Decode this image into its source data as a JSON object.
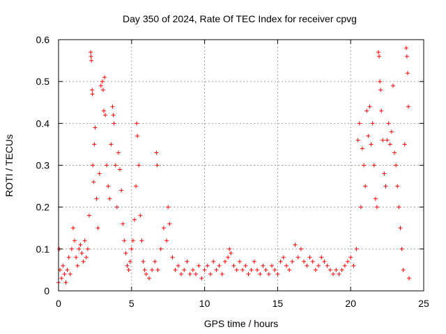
{
  "chart_data": {
    "type": "scatter",
    "title": "Day 350 of 2024, Rate Of TEC Index for receiver cpvg",
    "xlabel": "GPS time / hours",
    "ylabel": "ROTI / TECUs",
    "xlim": [
      0,
      25
    ],
    "ylim": [
      0,
      0.6
    ],
    "xticks": [
      0,
      5,
      10,
      15,
      20,
      25
    ],
    "xtick_labels": [
      "0",
      "5",
      "10",
      "15",
      "20",
      "25"
    ],
    "yticks": [
      0,
      0.1,
      0.2,
      0.3,
      0.4,
      0.5,
      0.6
    ],
    "ytick_labels": [
      "0",
      "0.1",
      "0.2",
      "0.3",
      "0.4",
      "0.5",
      "0.6"
    ],
    "grid": true,
    "marker": "+",
    "color": "#ff0000",
    "series": [
      {
        "name": "ROTI",
        "points": [
          [
            0.0,
            0.02
          ],
          [
            0.05,
            0.1
          ],
          [
            0.1,
            0.05
          ],
          [
            0.2,
            0.03
          ],
          [
            0.3,
            0.06
          ],
          [
            0.4,
            0.04
          ],
          [
            0.5,
            0.02
          ],
          [
            0.6,
            0.05
          ],
          [
            0.7,
            0.08
          ],
          [
            0.8,
            0.04
          ],
          [
            0.9,
            0.1
          ],
          [
            1.0,
            0.15
          ],
          [
            1.1,
            0.12
          ],
          [
            1.2,
            0.08
          ],
          [
            1.3,
            0.06
          ],
          [
            1.4,
            0.1
          ],
          [
            1.5,
            0.11
          ],
          [
            1.6,
            0.09
          ],
          [
            1.7,
            0.07
          ],
          [
            1.8,
            0.12
          ],
          [
            1.9,
            0.08
          ],
          [
            2.0,
            0.1
          ],
          [
            2.1,
            0.18
          ],
          [
            2.2,
            0.57
          ],
          [
            2.22,
            0.56
          ],
          [
            2.25,
            0.55
          ],
          [
            2.3,
            0.48
          ],
          [
            2.32,
            0.47
          ],
          [
            2.35,
            0.3
          ],
          [
            2.4,
            0.26
          ],
          [
            2.45,
            0.35
          ],
          [
            2.5,
            0.39
          ],
          [
            2.6,
            0.22
          ],
          [
            2.7,
            0.15
          ],
          [
            2.8,
            0.28
          ],
          [
            2.9,
            0.49
          ],
          [
            3.0,
            0.5
          ],
          [
            3.05,
            0.48
          ],
          [
            3.1,
            0.43
          ],
          [
            3.15,
            0.51
          ],
          [
            3.2,
            0.42
          ],
          [
            3.3,
            0.3
          ],
          [
            3.4,
            0.25
          ],
          [
            3.5,
            0.22
          ],
          [
            3.6,
            0.35
          ],
          [
            3.7,
            0.44
          ],
          [
            3.75,
            0.42
          ],
          [
            3.8,
            0.4
          ],
          [
            3.9,
            0.3
          ],
          [
            4.0,
            0.2
          ],
          [
            4.1,
            0.33
          ],
          [
            4.2,
            0.29
          ],
          [
            4.3,
            0.24
          ],
          [
            4.4,
            0.16
          ],
          [
            4.5,
            0.12
          ],
          [
            4.6,
            0.09
          ],
          [
            4.7,
            0.06
          ],
          [
            4.8,
            0.05
          ],
          [
            4.9,
            0.07
          ],
          [
            5.0,
            0.1
          ],
          [
            5.1,
            0.12
          ],
          [
            5.2,
            0.17
          ],
          [
            5.3,
            0.25
          ],
          [
            5.35,
            0.4
          ],
          [
            5.4,
            0.37
          ],
          [
            5.5,
            0.3
          ],
          [
            5.6,
            0.18
          ],
          [
            5.7,
            0.12
          ],
          [
            5.8,
            0.07
          ],
          [
            5.9,
            0.05
          ],
          [
            6.0,
            0.04
          ],
          [
            6.2,
            0.03
          ],
          [
            6.4,
            0.05
          ],
          [
            6.6,
            0.07
          ],
          [
            6.7,
            0.33
          ],
          [
            6.75,
            0.3
          ],
          [
            6.8,
            0.05
          ],
          [
            7.0,
            0.1
          ],
          [
            7.2,
            0.15
          ],
          [
            7.4,
            0.12
          ],
          [
            7.5,
            0.2
          ],
          [
            7.6,
            0.16
          ],
          [
            7.8,
            0.08
          ],
          [
            8.0,
            0.05
          ],
          [
            8.2,
            0.06
          ],
          [
            8.4,
            0.04
          ],
          [
            8.6,
            0.05
          ],
          [
            8.8,
            0.07
          ],
          [
            9.0,
            0.04
          ],
          [
            9.2,
            0.05
          ],
          [
            9.4,
            0.04
          ],
          [
            9.6,
            0.06
          ],
          [
            9.8,
            0.03
          ],
          [
            10.0,
            0.05
          ],
          [
            10.2,
            0.06
          ],
          [
            10.4,
            0.04
          ],
          [
            10.6,
            0.07
          ],
          [
            10.8,
            0.05
          ],
          [
            11.0,
            0.06
          ],
          [
            11.2,
            0.04
          ],
          [
            11.4,
            0.07
          ],
          [
            11.6,
            0.08
          ],
          [
            11.7,
            0.1
          ],
          [
            11.8,
            0.09
          ],
          [
            12.0,
            0.06
          ],
          [
            12.2,
            0.05
          ],
          [
            12.4,
            0.07
          ],
          [
            12.6,
            0.05
          ],
          [
            12.8,
            0.06
          ],
          [
            13.0,
            0.04
          ],
          [
            13.2,
            0.05
          ],
          [
            13.4,
            0.07
          ],
          [
            13.6,
            0.05
          ],
          [
            13.8,
            0.04
          ],
          [
            14.0,
            0.06
          ],
          [
            14.2,
            0.05
          ],
          [
            14.4,
            0.04
          ],
          [
            14.6,
            0.06
          ],
          [
            14.8,
            0.05
          ],
          [
            15.0,
            0.04
          ],
          [
            15.2,
            0.07
          ],
          [
            15.4,
            0.08
          ],
          [
            15.6,
            0.06
          ],
          [
            15.8,
            0.05
          ],
          [
            16.0,
            0.07
          ],
          [
            16.2,
            0.11
          ],
          [
            16.4,
            0.08
          ],
          [
            16.6,
            0.1
          ],
          [
            16.8,
            0.07
          ],
          [
            17.0,
            0.06
          ],
          [
            17.2,
            0.08
          ],
          [
            17.4,
            0.07
          ],
          [
            17.6,
            0.05
          ],
          [
            17.8,
            0.06
          ],
          [
            18.0,
            0.08
          ],
          [
            18.2,
            0.07
          ],
          [
            18.4,
            0.06
          ],
          [
            18.6,
            0.05
          ],
          [
            18.8,
            0.04
          ],
          [
            19.0,
            0.05
          ],
          [
            19.2,
            0.04
          ],
          [
            19.4,
            0.05
          ],
          [
            19.6,
            0.06
          ],
          [
            19.8,
            0.07
          ],
          [
            20.0,
            0.08
          ],
          [
            20.2,
            0.06
          ],
          [
            20.4,
            0.1
          ],
          [
            20.5,
            0.36
          ],
          [
            20.6,
            0.4
          ],
          [
            20.7,
            0.2
          ],
          [
            20.8,
            0.34
          ],
          [
            20.9,
            0.3
          ],
          [
            21.0,
            0.25
          ],
          [
            21.1,
            0.43
          ],
          [
            21.2,
            0.37
          ],
          [
            21.3,
            0.44
          ],
          [
            21.4,
            0.35
          ],
          [
            21.5,
            0.4
          ],
          [
            21.6,
            0.3
          ],
          [
            21.7,
            0.22
          ],
          [
            21.8,
            0.2
          ],
          [
            21.9,
            0.57
          ],
          [
            21.95,
            0.56
          ],
          [
            22.0,
            0.5
          ],
          [
            22.05,
            0.48
          ],
          [
            22.1,
            0.43
          ],
          [
            22.2,
            0.36
          ],
          [
            22.3,
            0.28
          ],
          [
            22.4,
            0.25
          ],
          [
            22.5,
            0.36
          ],
          [
            22.6,
            0.4
          ],
          [
            22.7,
            0.35
          ],
          [
            22.8,
            0.38
          ],
          [
            22.9,
            0.49
          ],
          [
            23.0,
            0.33
          ],
          [
            23.1,
            0.3
          ],
          [
            23.2,
            0.25
          ],
          [
            23.3,
            0.2
          ],
          [
            23.4,
            0.15
          ],
          [
            23.5,
            0.1
          ],
          [
            23.6,
            0.05
          ],
          [
            23.7,
            0.35
          ],
          [
            23.8,
            0.58
          ],
          [
            23.85,
            0.56
          ],
          [
            23.9,
            0.52
          ],
          [
            23.95,
            0.44
          ],
          [
            24.0,
            0.03
          ]
        ]
      }
    ]
  }
}
